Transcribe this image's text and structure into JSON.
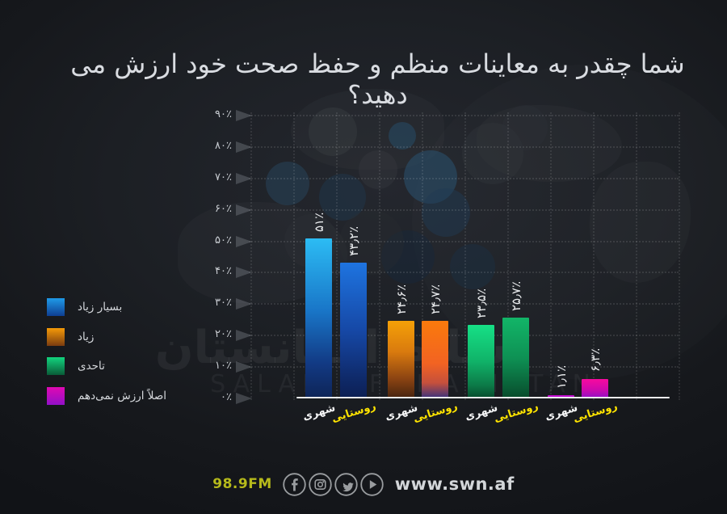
{
  "title": "شما چقدر به معاینات منظم و حفظ صحت خود ارزش می دهید؟",
  "watermark": {
    "persian": "سلام افغانستان",
    "latin": "SALAM AFGHANISTAN"
  },
  "colors": {
    "background": "#1c1f24",
    "urban_label": "#f4f5f6",
    "rural_label": "#ffe400",
    "station_text": "#b6ba1b",
    "axis_text": "#c9cdd2",
    "value_text": "#eaecee"
  },
  "legend": {
    "items": [
      {
        "label": "بسیار زیاد",
        "color_top": "#1f9ae8",
        "color_bottom": "#0f3f92"
      },
      {
        "label": "زیاد",
        "color_top": "#f59a08",
        "color_bottom": "#7a3c10"
      },
      {
        "label": "تاحدی",
        "color_top": "#12d47e",
        "color_bottom": "#0a5c38"
      },
      {
        "label": "اصلاً ارزش نمی‌دهم",
        "color_top": "#e009b2",
        "color_bottom": "#9210c8"
      }
    ]
  },
  "chart_data": {
    "type": "bar",
    "title": "شما چقدر به معاینات منظم و حفظ صحت خود ارزش می دهید؟",
    "categories": [
      "بسیار زیاد",
      "زیاد",
      "تاحدی",
      "اصلاً ارزش نمی‌دهم"
    ],
    "series": [
      {
        "name": "شهری",
        "values": [
          51,
          24.6,
          23.5,
          1.1
        ]
      },
      {
        "name": "روستایی",
        "values": [
          43.2,
          24.7,
          25.7,
          6.3
        ]
      }
    ],
    "ylim": [
      0,
      90
    ],
    "grid": "dotted",
    "legend_position": "left",
    "y_ticks": [
      "۰٪",
      "۱۰٪",
      "۲۰٪",
      "۳۰٪",
      "۴۰٪",
      "۵۰٪",
      "۶۰٪",
      "۷۰٪",
      "۸۰٪",
      "۹۰٪"
    ],
    "bars": [
      {
        "category": "بسیار زیاد",
        "series": "شهری",
        "value": 51,
        "label": "۵۱٪",
        "gradient": "linear-gradient(180deg,#2cbcf4 0%,#1976c8 45%,#123a84 78%,#0e2456 100%)",
        "x_label_color": "#f4f5f6"
      },
      {
        "category": "بسیار زیاد",
        "series": "روستایی",
        "value": 43.2,
        "label": "۴۳٫۲٪",
        "gradient": "linear-gradient(180deg,#1e74e0 0%,#1648a6 50%,#0f2a6a 85%,#0c1f52 100%)",
        "x_label_color": "#ffe400"
      },
      {
        "category": "زیاد",
        "series": "شهری",
        "value": 24.6,
        "label": "۲۴٫۶٪",
        "gradient": "linear-gradient(180deg,#f5a107 0%,#d97a0e 40%,#8a4312 75%,#45230f 100%)",
        "x_label_color": "#f4f5f6"
      },
      {
        "category": "زیاد",
        "series": "روستایی",
        "value": 24.7,
        "label": "۲۴٫۷٪",
        "gradient": "linear-gradient(180deg,#fa7a0c 0%,#f26322 55%,#c5503c 80%,#37317e 100%)",
        "x_label_color": "#ffe400"
      },
      {
        "category": "تاحدی",
        "series": "شهری",
        "value": 23.5,
        "label": "۲۳٫۵٪",
        "gradient": "linear-gradient(180deg,#16e086 0%,#10b268 50%,#0c7a48 82%,#074a2c 100%)",
        "x_label_color": "#f4f5f6"
      },
      {
        "category": "تاحدی",
        "series": "روستایی",
        "value": 25.7,
        "label": "۲۵٫۷٪",
        "gradient": "linear-gradient(180deg,#12b568 0%,#0e9154 50%,#0a6038 85%,#07492a 100%)",
        "x_label_color": "#ffe400"
      },
      {
        "category": "اصلاً ارزش نمی‌دهم",
        "series": "شهری",
        "value": 1.1,
        "label": "۱٫۱٪",
        "gradient": "linear-gradient(180deg,#cb0ad2 0%,#a90fd0 100%)",
        "x_label_color": "#f4f5f6"
      },
      {
        "category": "اصلاً ارزش نمی‌دهم",
        "series": "روستایی",
        "value": 6.3,
        "label": "۶٫۳٪",
        "gradient": "linear-gradient(180deg,#f70a9e 0%,#cf09ad 55%,#8d11c6 100%)",
        "x_label_color": "#ffe400"
      }
    ]
  },
  "footer": {
    "station": "98.9FM",
    "website": "www.swn.af",
    "icons": [
      "facebook-icon",
      "instagram-icon",
      "twitter-icon",
      "play-icon"
    ]
  }
}
